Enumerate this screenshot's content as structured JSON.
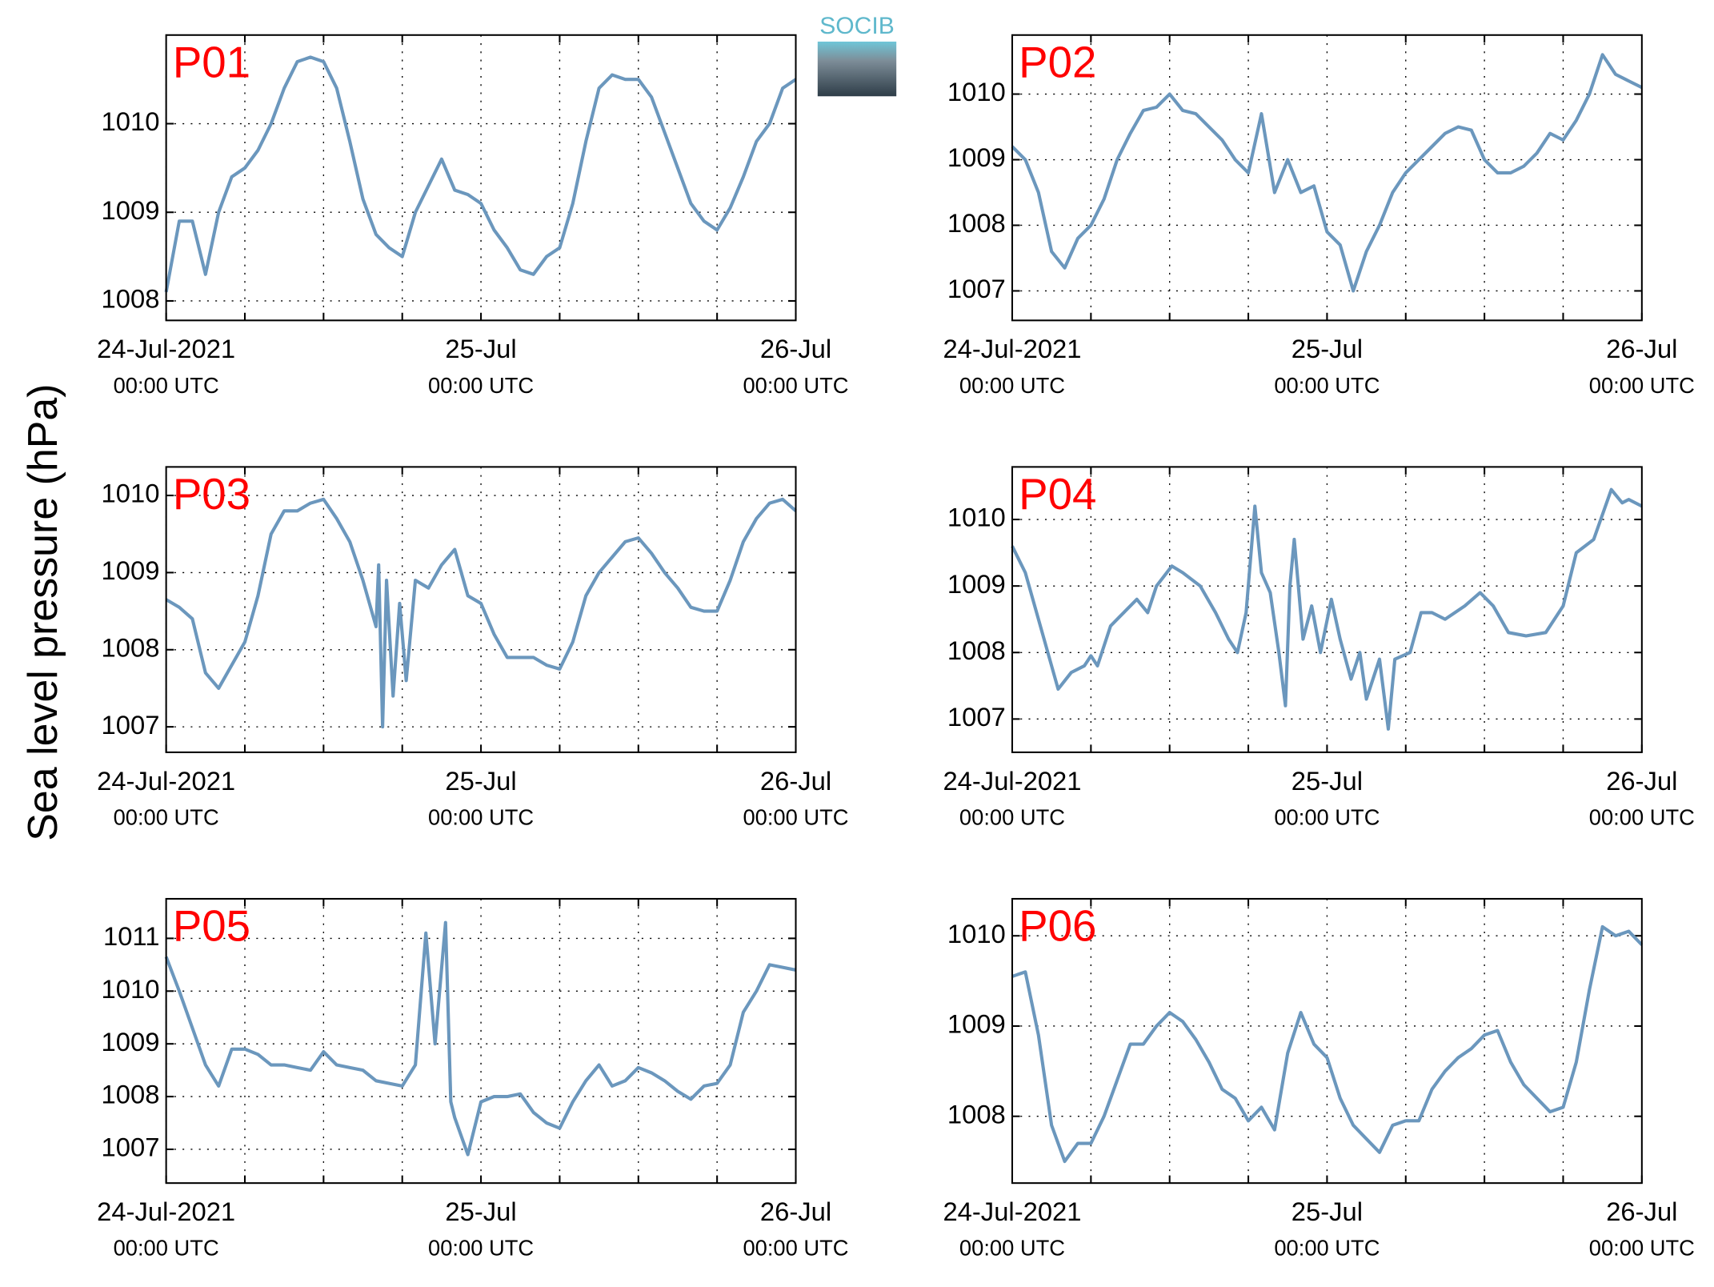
{
  "ylabel": "Sea level pressure (hPa)",
  "logo": "SOCIB",
  "chart_data": [
    {
      "type": "line",
      "title": "P01",
      "xlim": [
        0,
        48
      ],
      "ylim": [
        1007.78,
        1011
      ],
      "yticks": [
        1008,
        1009,
        1010
      ],
      "grid": true,
      "xticks": [
        {
          "value": 0,
          "label": "24-Jul-2021",
          "sublabel": "00:00 UTC"
        },
        {
          "value": 24,
          "label": "25-Jul",
          "sublabel": "00:00 UTC"
        },
        {
          "value": 48,
          "label": "26-Jul",
          "sublabel": "00:00 UTC"
        }
      ],
      "xminor": [
        6,
        12,
        18,
        30,
        36,
        42
      ],
      "x": [
        0,
        1,
        2,
        3,
        4,
        5,
        6,
        7,
        8,
        9,
        10,
        11,
        12,
        13,
        14,
        15,
        16,
        17,
        18,
        19,
        20,
        21,
        22,
        23,
        24,
        25,
        26,
        27,
        28,
        29,
        30,
        31,
        32,
        33,
        34,
        35,
        36,
        37,
        38,
        39,
        40,
        41,
        42,
        43,
        44,
        45,
        46,
        47,
        48
      ],
      "series": [
        {
          "color": "#6b97bd",
          "values": [
            1008.1,
            1008.9,
            1008.9,
            1008.3,
            1009.0,
            1009.4,
            1009.5,
            1009.7,
            1010.0,
            1010.4,
            1010.7,
            1010.75,
            1010.7,
            1010.4,
            1009.8,
            1009.15,
            1008.75,
            1008.6,
            1008.5,
            1009.0,
            1009.3,
            1009.6,
            1009.25,
            1009.2,
            1009.1,
            1008.8,
            1008.6,
            1008.35,
            1008.3,
            1008.5,
            1008.6,
            1009.1,
            1009.8,
            1010.4,
            1010.55,
            1010.5,
            1010.5,
            1010.3,
            1009.9,
            1009.5,
            1009.1,
            1008.9,
            1008.8,
            1009.05,
            1009.4,
            1009.8,
            1010.0,
            1010.4,
            1010.5
          ]
        }
      ]
    },
    {
      "type": "line",
      "title": "P02",
      "xlim": [
        0,
        48
      ],
      "ylim": [
        1006.55,
        1010.9
      ],
      "yticks": [
        1007,
        1008,
        1009,
        1010
      ],
      "grid": true,
      "xticks": [
        {
          "value": 0,
          "label": "24-Jul-2021",
          "sublabel": "00:00 UTC"
        },
        {
          "value": 24,
          "label": "25-Jul",
          "sublabel": "00:00 UTC"
        },
        {
          "value": 48,
          "label": "26-Jul",
          "sublabel": "00:00 UTC"
        }
      ],
      "xminor": [
        6,
        12,
        18,
        30,
        36,
        42
      ],
      "x": [
        0,
        1,
        2,
        3,
        4,
        5,
        6,
        7,
        8,
        9,
        10,
        11,
        12,
        13,
        14,
        15,
        16,
        17,
        18,
        19,
        20,
        21,
        22,
        23,
        24,
        25,
        26,
        27,
        28,
        29,
        30,
        31,
        32,
        33,
        34,
        35,
        36,
        37,
        38,
        39,
        40,
        41,
        42,
        43,
        44,
        45,
        46,
        47,
        48
      ],
      "series": [
        {
          "color": "#6b97bd",
          "values": [
            1009.2,
            1009.0,
            1008.5,
            1007.6,
            1007.35,
            1007.8,
            1008.0,
            1008.4,
            1009.0,
            1009.4,
            1009.75,
            1009.8,
            1010.0,
            1009.75,
            1009.7,
            1009.5,
            1009.3,
            1009.0,
            1008.8,
            1009.7,
            1008.5,
            1009.0,
            1008.5,
            1008.6,
            1007.9,
            1007.7,
            1007.0,
            1007.6,
            1008.0,
            1008.5,
            1008.8,
            1009.0,
            1009.2,
            1009.4,
            1009.5,
            1009.45,
            1009.0,
            1008.8,
            1008.8,
            1008.9,
            1009.1,
            1009.4,
            1009.3,
            1009.6,
            1010.0,
            1010.6,
            1010.3,
            1010.2,
            1010.1
          ]
        }
      ]
    },
    {
      "type": "line",
      "title": "P03",
      "xlim": [
        0,
        48
      ],
      "ylim": [
        1006.67,
        1010.37
      ],
      "yticks": [
        1007,
        1008,
        1009,
        1010
      ],
      "grid": true,
      "xticks": [
        {
          "value": 0,
          "label": "24-Jul-2021",
          "sublabel": "00:00 UTC"
        },
        {
          "value": 24,
          "label": "25-Jul",
          "sublabel": "00:00 UTC"
        },
        {
          "value": 48,
          "label": "26-Jul",
          "sublabel": "00:00 UTC"
        }
      ],
      "xminor": [
        6,
        12,
        18,
        30,
        36,
        42
      ],
      "x": [
        0,
        1,
        2,
        3,
        4,
        5,
        6,
        7,
        8,
        9,
        10,
        11,
        12,
        13,
        14,
        15,
        16,
        16.2,
        16.5,
        16.8,
        17.3,
        17.8,
        18.3,
        19,
        20,
        21,
        22,
        23,
        24,
        25,
        26,
        27,
        28,
        29,
        30,
        31,
        32,
        33,
        34,
        35,
        36,
        37,
        38,
        39,
        40,
        41,
        42,
        43,
        44,
        45,
        46,
        47,
        48
      ],
      "series": [
        {
          "color": "#6b97bd",
          "values": [
            1008.65,
            1008.55,
            1008.4,
            1007.7,
            1007.5,
            1007.8,
            1008.1,
            1008.7,
            1009.5,
            1009.8,
            1009.8,
            1009.9,
            1009.95,
            1009.7,
            1009.4,
            1008.9,
            1008.3,
            1009.1,
            1007.0,
            1008.9,
            1007.4,
            1008.6,
            1007.6,
            1008.9,
            1008.8,
            1009.1,
            1009.3,
            1008.7,
            1008.6,
            1008.2,
            1007.9,
            1007.9,
            1007.9,
            1007.8,
            1007.75,
            1008.1,
            1008.7,
            1009.0,
            1009.2,
            1009.4,
            1009.45,
            1009.25,
            1009.0,
            1008.8,
            1008.55,
            1008.5,
            1008.5,
            1008.9,
            1009.4,
            1009.7,
            1009.9,
            1009.95,
            1009.8
          ]
        }
      ]
    },
    {
      "type": "line",
      "title": "P04",
      "xlim": [
        0,
        48
      ],
      "ylim": [
        1006.5,
        1010.79
      ],
      "yticks": [
        1007,
        1008,
        1009,
        1010
      ],
      "grid": true,
      "xticks": [
        {
          "value": 0,
          "label": "24-Jul-2021",
          "sublabel": "00:00 UTC"
        },
        {
          "value": 24,
          "label": "25-Jul",
          "sublabel": "00:00 UTC"
        },
        {
          "value": 48,
          "label": "26-Jul",
          "sublabel": "00:00 UTC"
        }
      ],
      "xminor": [
        6,
        12,
        18,
        30,
        36,
        42
      ],
      "x": [
        0,
        1,
        2,
        3,
        3.5,
        4.5,
        5.5,
        6,
        6.5,
        7.5,
        8.5,
        9.5,
        10.33,
        11,
        12.17,
        13,
        14.33,
        15.5,
        16.5,
        17.17,
        17.83,
        18.5,
        19,
        19.67,
        20.33,
        20.83,
        21.17,
        21.5,
        22.17,
        22.83,
        23.5,
        24.33,
        25,
        25.83,
        26.5,
        27,
        28,
        28.67,
        29.17,
        30.33,
        31.17,
        32,
        33,
        34.5,
        35.67,
        36.67,
        37.83,
        39.17,
        40.67,
        42,
        43,
        44.33,
        45.67,
        46.5,
        47,
        48
      ],
      "series": [
        {
          "color": "#6b97bd",
          "values": [
            1009.6,
            1009.2,
            1008.5,
            1007.8,
            1007.45,
            1007.7,
            1007.8,
            1007.95,
            1007.8,
            1008.4,
            1008.6,
            1008.8,
            1008.6,
            1009.0,
            1009.3,
            1009.2,
            1009.0,
            1008.6,
            1008.2,
            1008.0,
            1008.6,
            1010.2,
            1009.2,
            1008.9,
            1008.0,
            1007.2,
            1009.0,
            1009.7,
            1008.2,
            1008.7,
            1008.0,
            1008.8,
            1008.2,
            1007.6,
            1008.0,
            1007.3,
            1007.9,
            1006.85,
            1007.9,
            1008.0,
            1008.6,
            1008.6,
            1008.5,
            1008.7,
            1008.9,
            1008.7,
            1008.3,
            1008.25,
            1008.3,
            1008.7,
            1009.5,
            1009.7,
            1010.45,
            1010.25,
            1010.3,
            1010.2
          ]
        }
      ]
    },
    {
      "type": "line",
      "title": "P05",
      "xlim": [
        0,
        48
      ],
      "ylim": [
        1006.36,
        1011.75
      ],
      "yticks": [
        1007,
        1008,
        1009,
        1010,
        1011
      ],
      "grid": true,
      "xticks": [
        {
          "value": 0,
          "label": "24-Jul-2021",
          "sublabel": "00:00 UTC"
        },
        {
          "value": 24,
          "label": "25-Jul",
          "sublabel": "00:00 UTC"
        },
        {
          "value": 48,
          "label": "26-Jul",
          "sublabel": "00:00 UTC"
        }
      ],
      "xminor": [
        6,
        12,
        18,
        30,
        36,
        42
      ],
      "x": [
        0,
        1,
        2,
        3,
        4,
        5,
        6,
        7,
        8,
        9,
        10,
        11,
        12,
        13,
        14,
        15,
        16,
        17,
        18,
        19,
        19.8,
        20.5,
        21.3,
        21.7,
        22,
        23,
        24,
        25,
        26,
        27,
        28,
        29,
        30,
        31,
        32,
        33,
        34,
        35,
        36,
        37,
        38,
        39,
        40,
        41,
        42,
        43,
        44,
        45,
        46,
        47,
        48
      ],
      "series": [
        {
          "color": "#6b97bd",
          "values": [
            1010.65,
            1010.0,
            1009.3,
            1008.6,
            1008.2,
            1008.9,
            1008.9,
            1008.8,
            1008.6,
            1008.6,
            1008.55,
            1008.5,
            1008.85,
            1008.6,
            1008.55,
            1008.5,
            1008.3,
            1008.25,
            1008.2,
            1008.6,
            1011.1,
            1009.0,
            1011.3,
            1007.9,
            1007.6,
            1006.9,
            1007.9,
            1008.0,
            1008.0,
            1008.05,
            1007.7,
            1007.5,
            1007.4,
            1007.9,
            1008.3,
            1008.6,
            1008.2,
            1008.3,
            1008.55,
            1008.45,
            1008.3,
            1008.1,
            1007.95,
            1008.2,
            1008.25,
            1008.6,
            1009.6,
            1010.0,
            1010.5,
            1010.45,
            1010.4
          ]
        }
      ]
    },
    {
      "type": "line",
      "title": "P06",
      "xlim": [
        0,
        48
      ],
      "ylim": [
        1007.26,
        1010.41
      ],
      "yticks": [
        1008,
        1009,
        1010
      ],
      "grid": true,
      "xticks": [
        {
          "value": 0,
          "label": "24-Jul-2021",
          "sublabel": "00:00 UTC"
        },
        {
          "value": 24,
          "label": "25-Jul",
          "sublabel": "00:00 UTC"
        },
        {
          "value": 48,
          "label": "26-Jul",
          "sublabel": "00:00 UTC"
        }
      ],
      "xminor": [
        6,
        12,
        18,
        30,
        36,
        42
      ],
      "x": [
        0,
        1,
        2,
        3,
        4,
        5,
        6,
        7,
        8,
        9,
        10,
        11,
        12,
        13,
        14,
        15,
        16,
        17,
        18,
        19,
        20,
        21,
        22,
        23,
        24,
        25,
        26,
        27,
        28,
        29,
        30,
        31,
        32,
        33,
        34,
        35,
        36,
        37,
        38,
        39,
        40,
        41,
        42,
        43,
        44,
        45,
        46,
        47,
        48
      ],
      "series": [
        {
          "color": "#6b97bd",
          "values": [
            1009.55,
            1009.6,
            1008.9,
            1007.9,
            1007.5,
            1007.7,
            1007.7,
            1008.0,
            1008.4,
            1008.8,
            1008.8,
            1009.0,
            1009.15,
            1009.05,
            1008.85,
            1008.6,
            1008.3,
            1008.2,
            1007.95,
            1008.1,
            1007.85,
            1008.7,
            1009.15,
            1008.8,
            1008.65,
            1008.2,
            1007.9,
            1007.75,
            1007.6,
            1007.9,
            1007.95,
            1007.95,
            1008.3,
            1008.5,
            1008.65,
            1008.75,
            1008.9,
            1008.95,
            1008.6,
            1008.35,
            1008.2,
            1008.05,
            1008.1,
            1008.6,
            1009.4,
            1010.1,
            1010.0,
            1010.05,
            1009.9
          ]
        }
      ]
    }
  ]
}
